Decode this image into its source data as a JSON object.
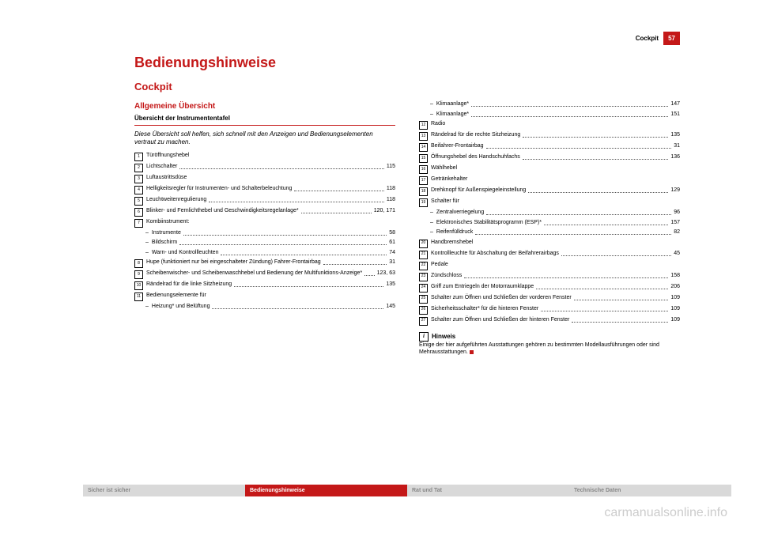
{
  "header": {
    "section": "Cockpit",
    "page": "57"
  },
  "titles": {
    "main": "Bedienungshinweise",
    "section": "Cockpit",
    "sub": "Allgemeine Übersicht",
    "inst": "Übersicht der Instrumententafel"
  },
  "intro": "Diese Übersicht soll helfen, sich schnell mit den Anzeigen und Bedienungselementen vertraut zu machen.",
  "left": [
    {
      "n": "1",
      "t": "Türöffnungshebel",
      "p": ""
    },
    {
      "n": "2",
      "t": "Lichtschalter",
      "p": "115"
    },
    {
      "n": "3",
      "t": "Luftaustrittsdüse",
      "p": ""
    },
    {
      "n": "4",
      "t": "Helligkeitsregler für Instrumenten- und Schalterbeleuchtung",
      "p": "118"
    },
    {
      "n": "5",
      "t": "Leuchtweitenregulierung",
      "p": "118"
    },
    {
      "n": "6",
      "t": "Blinker- und Fernlichthebel und Geschwindigkeitsregelanlage*",
      "p": "120, 171"
    },
    {
      "n": "7",
      "t": "Kombiinstrument:",
      "p": ""
    },
    {
      "sub": true,
      "t": "Instrumente",
      "p": "58"
    },
    {
      "sub": true,
      "t": "Bildschirm",
      "p": "61"
    },
    {
      "sub": true,
      "t": "Warn- und Kontrollleuchten",
      "p": "74"
    },
    {
      "n": "8",
      "t": "Hupe (funktioniert nur bei eingeschalteter Zündung) Fahrer-Frontairbag",
      "p": "31"
    },
    {
      "n": "9",
      "t": "Scheibenwischer- und Scheibenwaschhebel und Bedienung der Multifunktions-Anzeige*",
      "p": "123, 63"
    },
    {
      "n": "10",
      "t": "Rändelrad für die linke Sitzheizung",
      "p": "135"
    },
    {
      "n": "11",
      "t": "Bedienungselemente für",
      "p": ""
    },
    {
      "sub": true,
      "t": "Heizung* und Belüftung",
      "p": "145"
    }
  ],
  "right": [
    {
      "sub": true,
      "t": "Klimaanlage*",
      "p": "147"
    },
    {
      "sub": true,
      "t": "Klimaanlage*",
      "p": "151"
    },
    {
      "n": "12",
      "t": "Radio",
      "p": ""
    },
    {
      "n": "13",
      "t": "Rändelrad für die rechte Sitzheizung",
      "p": "135"
    },
    {
      "n": "14",
      "t": "Beifahrer-Frontairbag",
      "p": "31"
    },
    {
      "n": "15",
      "t": "Öffnungshebel des Handschuhfachs",
      "p": "136"
    },
    {
      "n": "16",
      "t": "Wählhebel",
      "p": ""
    },
    {
      "n": "17",
      "t": "Getränkehalter",
      "p": ""
    },
    {
      "n": "18",
      "t": "Drehknopf für Außenspiegeleinstellung",
      "p": "129"
    },
    {
      "n": "19",
      "t": "Schalter für",
      "p": ""
    },
    {
      "sub": true,
      "t": "Zentralverriegelung",
      "p": "96"
    },
    {
      "sub": true,
      "t": "Elektronisches Stabilitätsprogramm (ESP)*",
      "p": "157"
    },
    {
      "sub": true,
      "t": "Reifenfülldruck",
      "p": "82"
    },
    {
      "n": "20",
      "t": "Handbremshebel",
      "p": ""
    },
    {
      "n": "21",
      "t": "Kontrollleuchte für Abschaltung der Beifahrerairbags",
      "p": "45"
    },
    {
      "n": "22",
      "t": "Pedale",
      "p": ""
    },
    {
      "n": "23",
      "t": "Zündschloss",
      "p": "158"
    },
    {
      "n": "24",
      "t": "Griff zum Entriegeln der Motorraumklappe",
      "p": "206"
    },
    {
      "n": "25",
      "t": "Schalter zum Öffnen und Schließen der vorderen Fenster",
      "p": "109"
    },
    {
      "n": "26",
      "t": "Sicherheitsschalter* für die hinteren Fenster",
      "p": "109"
    },
    {
      "n": "27",
      "t": "Schalter zum Öffnen und Schließen der hinteren Fenster",
      "p": "109"
    }
  ],
  "hinweis": {
    "label": "Hinweis",
    "text": "Einige der hier aufgeführten Ausstattungen gehören zu bestimmten Modellausführungen oder sind Mehrausstattungen."
  },
  "tabs": {
    "t1": "Sicher ist sicher",
    "t2": "Bedienungshinweise",
    "t3": "Rat und Tat",
    "t4": "Technische Daten",
    "c_inactive_bg": "#d9d9d9",
    "c_inactive_fg": "#888888",
    "c_active_bg": "#c41818",
    "c_active_fg": "#ffffff"
  },
  "watermark": "carmanualsonline.info"
}
